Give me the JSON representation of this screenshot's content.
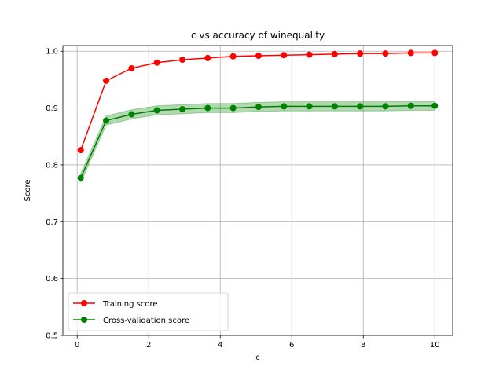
{
  "chart_data": {
    "type": "line",
    "title": "c vs accuracy of winequality",
    "xlabel": "c",
    "ylabel": "Score",
    "xlim": [
      -0.4,
      10.5
    ],
    "ylim": [
      0.5,
      1.01
    ],
    "xticks": [
      0,
      2,
      4,
      6,
      8,
      10
    ],
    "yticks": [
      0.5,
      0.6,
      0.7,
      0.8,
      0.9,
      1.0
    ],
    "xtick_labels": [
      "0",
      "2",
      "4",
      "6",
      "8",
      "10"
    ],
    "ytick_labels": [
      "0.5",
      "0.6",
      "0.7",
      "0.8",
      "0.9",
      "1.0"
    ],
    "grid": true,
    "legend_position": "lower-left",
    "x": [
      0.1,
      0.81,
      1.52,
      2.23,
      2.94,
      3.65,
      4.36,
      5.07,
      5.78,
      6.49,
      7.2,
      7.91,
      8.62,
      9.33,
      10.0
    ],
    "series": [
      {
        "name": "Training score",
        "color": "#ff0000",
        "marker": "circle",
        "values": [
          0.826,
          0.948,
          0.97,
          0.98,
          0.985,
          0.988,
          0.991,
          0.992,
          0.993,
          0.994,
          0.995,
          0.996,
          0.996,
          0.997,
          0.997
        ],
        "band": null
      },
      {
        "name": "Cross-validation score",
        "color": "#008000",
        "band_color": "#008000",
        "marker": "circle",
        "values": [
          0.777,
          0.878,
          0.889,
          0.896,
          0.898,
          0.9,
          0.9,
          0.902,
          0.903,
          0.903,
          0.903,
          0.903,
          0.903,
          0.904,
          0.904
        ],
        "band": [
          [
            0.769,
            0.785
          ],
          [
            0.87,
            0.886
          ],
          [
            0.881,
            0.897
          ],
          [
            0.888,
            0.904
          ],
          [
            0.89,
            0.906
          ],
          [
            0.892,
            0.908
          ],
          [
            0.892,
            0.908
          ],
          [
            0.894,
            0.91
          ],
          [
            0.895,
            0.911
          ],
          [
            0.895,
            0.911
          ],
          [
            0.895,
            0.911
          ],
          [
            0.895,
            0.911
          ],
          [
            0.895,
            0.911
          ],
          [
            0.896,
            0.912
          ],
          [
            0.896,
            0.912
          ]
        ]
      }
    ]
  }
}
